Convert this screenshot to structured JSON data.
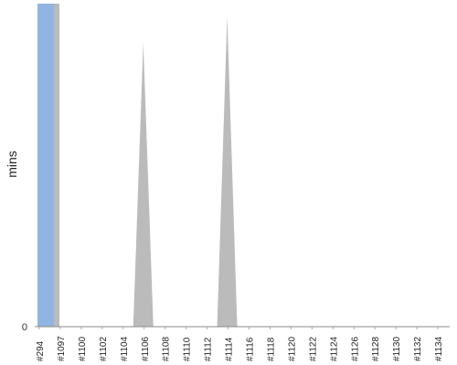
{
  "chart_data": {
    "type": "area",
    "title": "",
    "xlabel": "",
    "ylabel": "mins",
    "y_tick_labels": [
      "0"
    ],
    "ylim": [
      0,
      100
    ],
    "grid": false,
    "categories": [
      "#294",
      "#1097",
      "#1100",
      "#1102",
      "#1104",
      "#1106",
      "#1108",
      "#1110",
      "#1112",
      "#1114",
      "#1116",
      "#1118",
      "#1120",
      "#1122",
      "#1124",
      "#1126",
      "#1128",
      "#1130",
      "#1132",
      "#1134"
    ],
    "series": [
      {
        "color": "#bbbbbb",
        "values": [
          100,
          100,
          0,
          0,
          0,
          88,
          0,
          0,
          0,
          96,
          0,
          0,
          0,
          0,
          0,
          0,
          0,
          0,
          0,
          0
        ]
      },
      {
        "color": "#92b4e0",
        "values": [
          100,
          0,
          0,
          0,
          0,
          0,
          0,
          0,
          0,
          0,
          0,
          0,
          0,
          0,
          0,
          0,
          0,
          0,
          0,
          0
        ]
      }
    ]
  }
}
